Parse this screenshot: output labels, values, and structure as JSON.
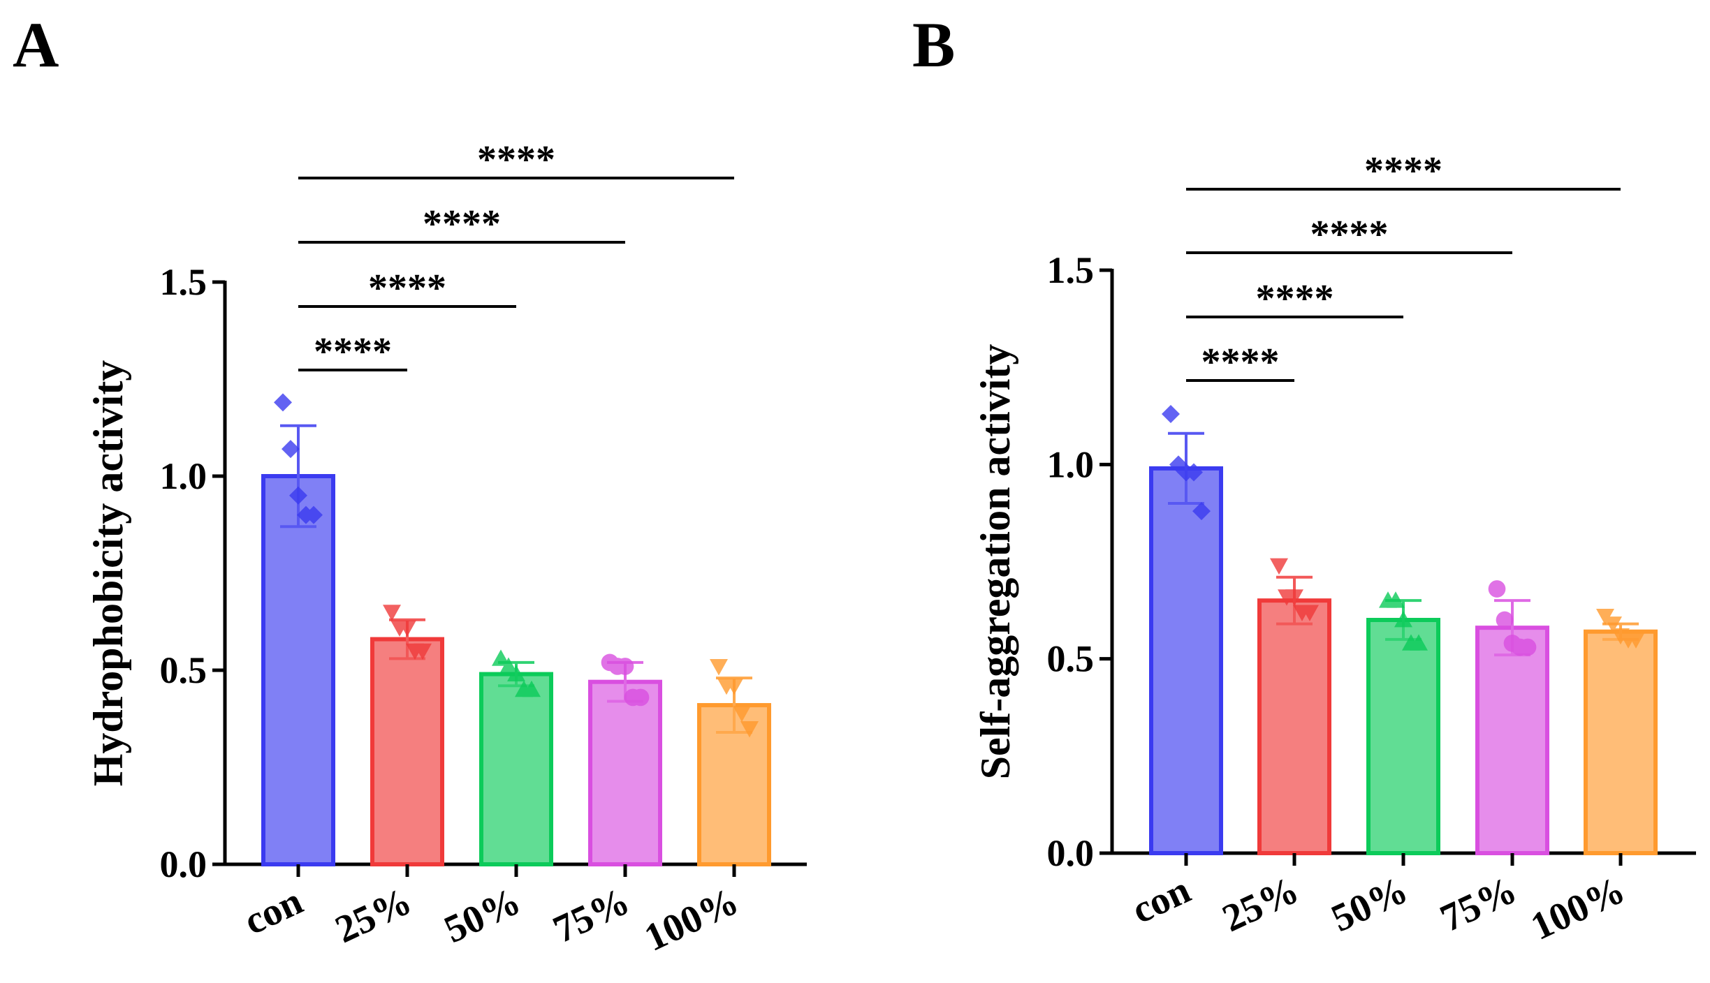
{
  "colors": {
    "con": "#3b3bf0",
    "25%": "#f03a3a",
    "50%": "#0ccb5a",
    "75%": "#d94fe0",
    "100%": "#ff9a2e"
  },
  "markers": {
    "con": "diamond",
    "25%": "triangle-down",
    "50%": "triangle-up",
    "75%": "circle",
    "100%": "triangle-down"
  },
  "chart_data": [
    {
      "panel": "A",
      "type": "bar",
      "title": "",
      "xlabel": "",
      "ylabel": "Hydrophobicity activity",
      "ylim": [
        0,
        1.5
      ],
      "yticks": [
        "0.0",
        "0.5",
        "1.0",
        "1.5"
      ],
      "categories": [
        "con",
        "25%",
        "50%",
        "75%",
        "100%"
      ],
      "values": [
        1.0,
        0.58,
        0.49,
        0.47,
        0.41
      ],
      "errors": [
        0.13,
        0.05,
        0.03,
        0.05,
        0.07
      ],
      "points": [
        [
          1.19,
          1.07,
          0.95,
          0.9,
          0.9
        ],
        [
          0.65,
          0.61,
          0.61,
          0.55,
          0.55
        ],
        [
          0.53,
          0.51,
          0.49,
          0.45,
          0.45
        ],
        [
          0.52,
          0.51,
          0.51,
          0.43,
          0.43
        ],
        [
          0.51,
          0.46,
          0.46,
          0.39,
          0.35
        ]
      ],
      "significance": [
        {
          "from": "con",
          "to": "25%",
          "label": "****"
        },
        {
          "from": "con",
          "to": "50%",
          "label": "****"
        },
        {
          "from": "con",
          "to": "75%",
          "label": "****"
        },
        {
          "from": "con",
          "to": "100%",
          "label": "****"
        }
      ]
    },
    {
      "panel": "B",
      "type": "bar",
      "title": "",
      "xlabel": "",
      "ylabel": "Self-aggregation activity",
      "ylim": [
        0,
        1.5
      ],
      "yticks": [
        "0.0",
        "0.5",
        "1.0",
        "1.5"
      ],
      "categories": [
        "con",
        "25%",
        "50%",
        "75%",
        "100%"
      ],
      "values": [
        0.99,
        0.65,
        0.6,
        0.58,
        0.57
      ],
      "errors": [
        0.09,
        0.06,
        0.05,
        0.07,
        0.02
      ],
      "points": [
        [
          1.13,
          1.0,
          0.98,
          0.98,
          0.88
        ],
        [
          0.74,
          0.66,
          0.66,
          0.62,
          0.62
        ],
        [
          0.65,
          0.65,
          0.6,
          0.54,
          0.54
        ],
        [
          0.68,
          0.6,
          0.54,
          0.53,
          0.53
        ],
        [
          0.61,
          0.59,
          0.56,
          0.55,
          0.55
        ]
      ],
      "significance": [
        {
          "from": "con",
          "to": "25%",
          "label": "****"
        },
        {
          "from": "con",
          "to": "50%",
          "label": "****"
        },
        {
          "from": "con",
          "to": "75%",
          "label": "****"
        },
        {
          "from": "con",
          "to": "100%",
          "label": "****"
        }
      ]
    }
  ]
}
